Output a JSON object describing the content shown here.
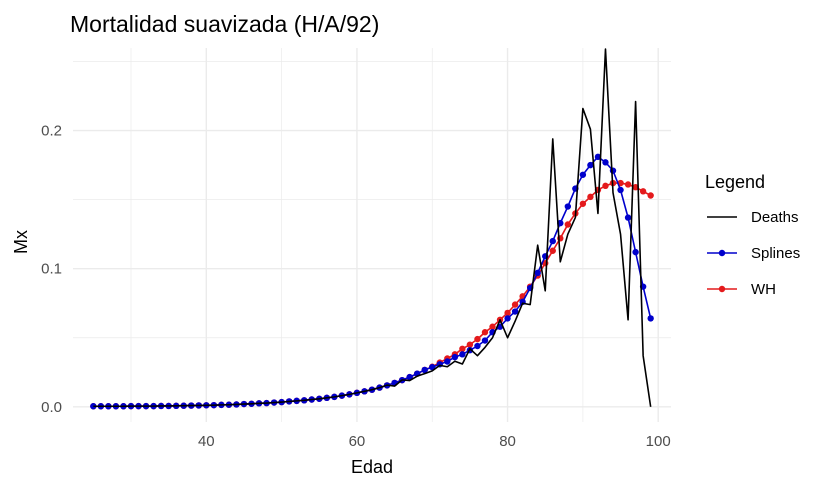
{
  "chart_data": {
    "type": "line",
    "title": "Mortalidad suavizada (H/A/92)",
    "xlabel": "Edad",
    "ylabel": "Mx",
    "xlim": [
      22.3,
      101.7
    ],
    "ylim": [
      -0.011,
      0.2598
    ],
    "x_ticks": [
      40,
      60,
      80,
      100
    ],
    "y_ticks": [
      0.0,
      0.1,
      0.2
    ],
    "y_tick_labels": [
      "0.0",
      "0.1",
      "0.2"
    ],
    "grid": true,
    "legend": {
      "title": "Legend",
      "position": "right"
    },
    "x": [
      25,
      26,
      27,
      28,
      29,
      30,
      31,
      32,
      33,
      34,
      35,
      36,
      37,
      38,
      39,
      40,
      41,
      42,
      43,
      44,
      45,
      46,
      47,
      48,
      49,
      50,
      51,
      52,
      53,
      54,
      55,
      56,
      57,
      58,
      59,
      60,
      61,
      62,
      63,
      64,
      65,
      66,
      67,
      68,
      69,
      70,
      71,
      72,
      73,
      74,
      75,
      76,
      77,
      78,
      79,
      80,
      81,
      82,
      83,
      84,
      85,
      86,
      87,
      88,
      89,
      90,
      91,
      92,
      93,
      94,
      95,
      96,
      97,
      98,
      99
    ],
    "series": [
      {
        "name": "Deaths",
        "color": "#000000",
        "markers": false,
        "values": [
          0.0004,
          0.0004,
          0.0004,
          0.0004,
          0.0004,
          0.0005,
          0.0005,
          0.0005,
          0.0005,
          0.0006,
          0.0006,
          0.0007,
          0.0008,
          0.0009,
          0.001,
          0.0011,
          0.0012,
          0.0014,
          0.0015,
          0.0017,
          0.002,
          0.0022,
          0.0025,
          0.0027,
          0.0031,
          0.0034,
          0.0039,
          0.0043,
          0.0047,
          0.0053,
          0.0058,
          0.0065,
          0.0072,
          0.0081,
          0.009,
          0.0101,
          0.0112,
          0.0124,
          0.0139,
          0.0157,
          0.015,
          0.0195,
          0.019,
          0.0222,
          0.024,
          0.026,
          0.03,
          0.029,
          0.033,
          0.031,
          0.042,
          0.037,
          0.043,
          0.05,
          0.063,
          0.05,
          0.062,
          0.075,
          0.074,
          0.117,
          0.084,
          0.194,
          0.105,
          0.125,
          0.137,
          0.216,
          0.201,
          0.14,
          0.259,
          0.155,
          0.125,
          0.063,
          0.221,
          0.037,
          0.0
        ]
      },
      {
        "name": "Splines",
        "color": "#0000cc",
        "markers": true,
        "values": [
          0.0004,
          0.0004,
          0.0004,
          0.0004,
          0.0004,
          0.0005,
          0.0005,
          0.0005,
          0.0005,
          0.0006,
          0.0006,
          0.0007,
          0.0008,
          0.0009,
          0.001,
          0.0011,
          0.0012,
          0.0014,
          0.0015,
          0.0017,
          0.002,
          0.0022,
          0.0025,
          0.0027,
          0.0031,
          0.0034,
          0.0039,
          0.0043,
          0.0047,
          0.0053,
          0.0058,
          0.0065,
          0.0072,
          0.0081,
          0.009,
          0.0101,
          0.0112,
          0.0124,
          0.0139,
          0.0155,
          0.0173,
          0.0193,
          0.0215,
          0.024,
          0.0267,
          0.0287,
          0.0308,
          0.0328,
          0.036,
          0.038,
          0.041,
          0.044,
          0.048,
          0.054,
          0.058,
          0.064,
          0.069,
          0.076,
          0.086,
          0.097,
          0.109,
          0.12,
          0.133,
          0.145,
          0.158,
          0.168,
          0.175,
          0.181,
          0.177,
          0.171,
          0.157,
          0.137,
          0.112,
          0.087,
          0.064
        ]
      },
      {
        "name": "WH",
        "color": "#e41a1c",
        "markers": true,
        "values": [
          0.0004,
          0.0004,
          0.0004,
          0.0004,
          0.0004,
          0.0005,
          0.0005,
          0.0005,
          0.0005,
          0.0006,
          0.0006,
          0.0007,
          0.0008,
          0.0009,
          0.001,
          0.0011,
          0.0012,
          0.0014,
          0.0015,
          0.0017,
          0.002,
          0.0022,
          0.0025,
          0.0027,
          0.0031,
          0.0034,
          0.0039,
          0.0043,
          0.0047,
          0.0053,
          0.0058,
          0.0065,
          0.0072,
          0.0081,
          0.009,
          0.0101,
          0.0112,
          0.0124,
          0.0139,
          0.0155,
          0.0173,
          0.0193,
          0.0215,
          0.024,
          0.0267,
          0.029,
          0.032,
          0.035,
          0.038,
          0.042,
          0.045,
          0.049,
          0.054,
          0.058,
          0.063,
          0.068,
          0.074,
          0.08,
          0.087,
          0.095,
          0.104,
          0.113,
          0.122,
          0.132,
          0.14,
          0.147,
          0.152,
          0.157,
          0.16,
          0.162,
          0.162,
          0.161,
          0.159,
          0.156,
          0.153
        ]
      }
    ]
  }
}
